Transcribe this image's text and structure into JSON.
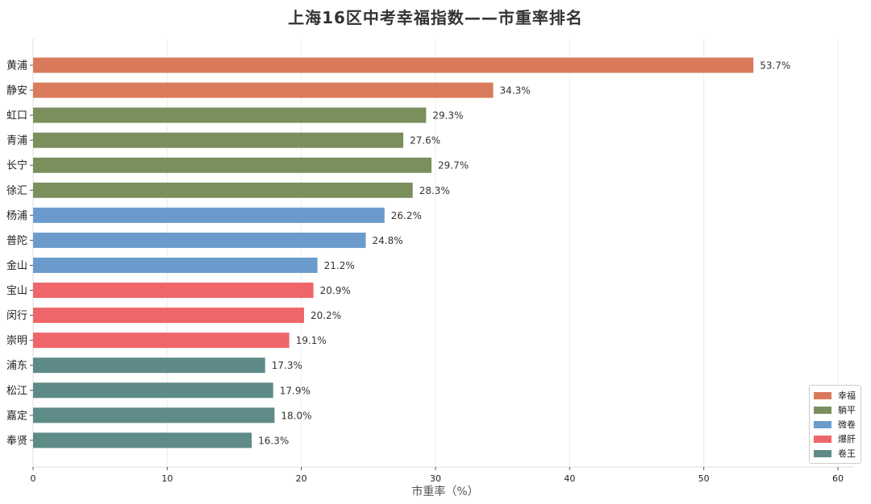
{
  "chart_data": {
    "type": "bar",
    "orientation": "horizontal",
    "title": "上海16区中考幸福指数——市重率排名",
    "xlabel": "市重率（%）",
    "ylabel": "",
    "xlim": [
      0,
      60
    ],
    "xticks": [
      "0",
      "10",
      "20",
      "30",
      "40",
      "50",
      "60"
    ],
    "grid": "vertical",
    "legend_position": "bottom-right",
    "categories": [
      "黄浦",
      "静安",
      "虹口",
      "青浦",
      "长宁",
      "徐汇",
      "杨浦",
      "普陀",
      "金山",
      "宝山",
      "闵行",
      "崇明",
      "浦东",
      "松江",
      "嘉定",
      "奉贤"
    ],
    "values": [
      53.7,
      34.3,
      29.3,
      27.6,
      29.7,
      28.3,
      26.2,
      24.8,
      21.2,
      20.9,
      20.2,
      19.1,
      17.3,
      17.9,
      18.0,
      16.3
    ],
    "value_labels": [
      "53.7%",
      "34.3%",
      "29.3%",
      "27.6%",
      "29.7%",
      "28.3%",
      "26.2%",
      "24.8%",
      "21.2%",
      "20.9%",
      "20.2%",
      "19.1%",
      "17.3%",
      "17.9%",
      "18.0%",
      "16.3%"
    ],
    "groups": [
      0,
      0,
      1,
      1,
      1,
      1,
      2,
      2,
      2,
      3,
      3,
      3,
      4,
      4,
      4,
      4
    ],
    "legend": [
      {
        "name": "幸福",
        "color": "#d97b5a"
      },
      {
        "name": "躺平",
        "color": "#7a8f5c"
      },
      {
        "name": "微卷",
        "color": "#6a9bcc"
      },
      {
        "name": "爆肝",
        "color": "#ee6669"
      },
      {
        "name": "卷王",
        "color": "#5e8b87"
      }
    ]
  }
}
